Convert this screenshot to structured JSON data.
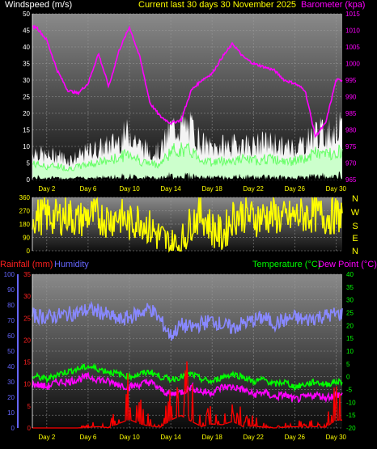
{
  "header": {
    "wind_label": "Windspeed (m/s)",
    "center_title": "Current last 30 days 30 November 2025",
    "baro_label": "Barometer (kpa)",
    "rain_label": "Rainfall (mm)",
    "humidity_label": "Humidity",
    "temp_label": "Temperature (°C)",
    "dew_label": "Dew Point (°C)"
  },
  "days": [
    "Day 2",
    "Day 6",
    "Day 10",
    "Day 14",
    "Day 18",
    "Day 22",
    "Day 26",
    "Day 30"
  ],
  "compass": [
    "N",
    "W",
    "S",
    "E",
    "N"
  ],
  "colors": {
    "wind": "#ffffff",
    "gust": "#ffffff",
    "avgwind": "#66ff66",
    "baro": "#ff00ff",
    "dir": "#ffff00",
    "rain": "#ff0000",
    "humidity": "#8888ff",
    "temp": "#00ff00",
    "dew": "#ff00ff",
    "axis_rain": "#ff2020",
    "axis_hum": "#6666ff",
    "axis_temp": "#00ff00"
  },
  "chart_data": [
    {
      "type": "area",
      "xlabel": "",
      "ylabel": "Windspeed (m/s)",
      "ylim": [
        0,
        50
      ],
      "y2lim": [
        965,
        1015
      ],
      "x_ticks": [
        "Day 2",
        "Day 6",
        "Day 10",
        "Day 14",
        "Day 18",
        "Day 22",
        "Day 26",
        "Day 30"
      ],
      "y_ticks": [
        0,
        5,
        10,
        15,
        20,
        25,
        30,
        35,
        40,
        45,
        50
      ],
      "y2_ticks": [
        965,
        970,
        975,
        980,
        985,
        990,
        995,
        1000,
        1005,
        1010,
        1015
      ],
      "series": [
        {
          "name": "Windspeed (m/s)",
          "axis": "left",
          "x": [
            1,
            2,
            3,
            4,
            5,
            6,
            7,
            8,
            9,
            10,
            11,
            12,
            13,
            14,
            15,
            16,
            17,
            18,
            19,
            20,
            21,
            22,
            23,
            24,
            25,
            26,
            27,
            28,
            29,
            30
          ],
          "values": [
            10,
            8,
            9,
            7,
            8,
            10,
            11,
            12,
            14,
            17,
            12,
            10,
            10,
            18,
            19,
            18,
            13,
            11,
            12,
            12,
            13,
            12,
            13,
            13,
            11,
            12,
            13,
            17,
            16,
            18
          ]
        },
        {
          "name": "Barometer (kpa)",
          "axis": "right",
          "x": [
            1,
            2,
            3,
            4,
            5,
            6,
            7,
            8,
            9,
            10,
            11,
            12,
            13,
            14,
            15,
            16,
            17,
            18,
            19,
            20,
            21,
            22,
            23,
            24,
            25,
            26,
            27,
            28,
            29,
            30
          ],
          "values": [
            1011,
            1007,
            998,
            992,
            991,
            994,
            1003,
            993,
            1004,
            1011,
            1002,
            988,
            984,
            982,
            983,
            992,
            995,
            997,
            1002,
            1006,
            1002,
            1000,
            999,
            998,
            995,
            994,
            992,
            978,
            982,
            995
          ]
        }
      ]
    },
    {
      "type": "line",
      "ylabel": "",
      "ylim": [
        0,
        360
      ],
      "y_ticks": [
        0,
        90,
        180,
        270,
        360
      ],
      "y2_ticks": [
        "N",
        "W",
        "S",
        "E",
        "N"
      ],
      "series": [
        {
          "name": "",
          "x": [
            1,
            2,
            3,
            4,
            5,
            6,
            7,
            8,
            9,
            10,
            11,
            12,
            13,
            14,
            15,
            16,
            17,
            18,
            19,
            20,
            21,
            22,
            23,
            24,
            25,
            26,
            27,
            28,
            29,
            30
          ],
          "values": [
            230,
            240,
            220,
            250,
            200,
            240,
            230,
            210,
            240,
            180,
            220,
            150,
            90,
            30,
            40,
            200,
            250,
            150,
            100,
            230,
            250,
            220,
            230,
            240,
            210,
            230,
            240,
            250,
            230,
            240
          ]
        }
      ]
    },
    {
      "type": "line",
      "ylabel": "",
      "ylim": [
        -20,
        40
      ],
      "rain_lim": [
        0,
        35
      ],
      "hum_lim": [
        0,
        100
      ],
      "x_ticks": [
        "Day 2",
        "Day 6",
        "Day 10",
        "Day 14",
        "Day 18",
        "Day 22",
        "Day 26",
        "Day 30"
      ],
      "y_ticks_temp": [
        -20,
        -15,
        -10,
        -5,
        0,
        5,
        10,
        15,
        20,
        25,
        30,
        35,
        40
      ],
      "y_ticks_rain": [
        0,
        5,
        10,
        15,
        20,
        25,
        30,
        35
      ],
      "y_ticks_hum": [
        0,
        10,
        20,
        30,
        40,
        50,
        60,
        70,
        80,
        90,
        100
      ],
      "series": [
        {
          "name": "Rainfall (mm)",
          "axis": "rain",
          "x": [
            1,
            2,
            3,
            4,
            5,
            6,
            7,
            8,
            9,
            10,
            11,
            12,
            13,
            14,
            15,
            16,
            17,
            18,
            19,
            20,
            21,
            22,
            23,
            24,
            25,
            26,
            27,
            28,
            29,
            30
          ],
          "values": [
            0,
            0,
            0,
            0,
            0,
            1,
            2,
            0,
            7,
            13,
            6,
            3,
            1,
            12,
            19,
            10,
            2,
            6,
            5,
            10,
            2,
            3,
            1,
            0,
            1,
            2,
            1,
            2,
            1,
            12
          ]
        },
        {
          "name": "Humidity",
          "axis": "hum",
          "x": [
            1,
            2,
            3,
            4,
            5,
            6,
            7,
            8,
            9,
            10,
            11,
            12,
            13,
            14,
            15,
            16,
            17,
            18,
            19,
            20,
            21,
            22,
            23,
            24,
            25,
            26,
            27,
            28,
            29,
            30
          ],
          "values": [
            73,
            72,
            73,
            74,
            75,
            77,
            76,
            73,
            70,
            72,
            75,
            78,
            70,
            60,
            67,
            65,
            68,
            70,
            67,
            65,
            68,
            70,
            72,
            68,
            70,
            72,
            70,
            72,
            73,
            74
          ]
        },
        {
          "name": "Temperature (°C)",
          "axis": "temp",
          "x": [
            1,
            2,
            3,
            4,
            5,
            6,
            7,
            8,
            9,
            10,
            11,
            12,
            13,
            14,
            15,
            16,
            17,
            18,
            19,
            20,
            21,
            22,
            23,
            24,
            25,
            26,
            27,
            28,
            29,
            30
          ],
          "values": [
            0,
            -1,
            1,
            2,
            3,
            4,
            3,
            2,
            1,
            0,
            1,
            2,
            0,
            -1,
            0,
            1,
            -1,
            -2,
            0,
            1,
            0,
            -2,
            -1,
            -3,
            -2,
            -4,
            -3,
            -2,
            -3,
            -2
          ]
        },
        {
          "name": "Dew Point (°C)",
          "axis": "temp",
          "x": [
            1,
            2,
            3,
            4,
            5,
            6,
            7,
            8,
            9,
            10,
            11,
            12,
            13,
            14,
            15,
            16,
            17,
            18,
            19,
            20,
            21,
            22,
            23,
            24,
            25,
            26,
            27,
            28,
            29,
            30
          ],
          "values": [
            -3,
            -4,
            -2,
            -2,
            -1,
            0,
            -1,
            -2,
            -3,
            -4,
            -3,
            -2,
            -5,
            -7,
            -6,
            -4,
            -6,
            -6,
            -4,
            -4,
            -5,
            -7,
            -6,
            -8,
            -7,
            -9,
            -8,
            -7,
            -8,
            -7
          ]
        }
      ]
    }
  ]
}
